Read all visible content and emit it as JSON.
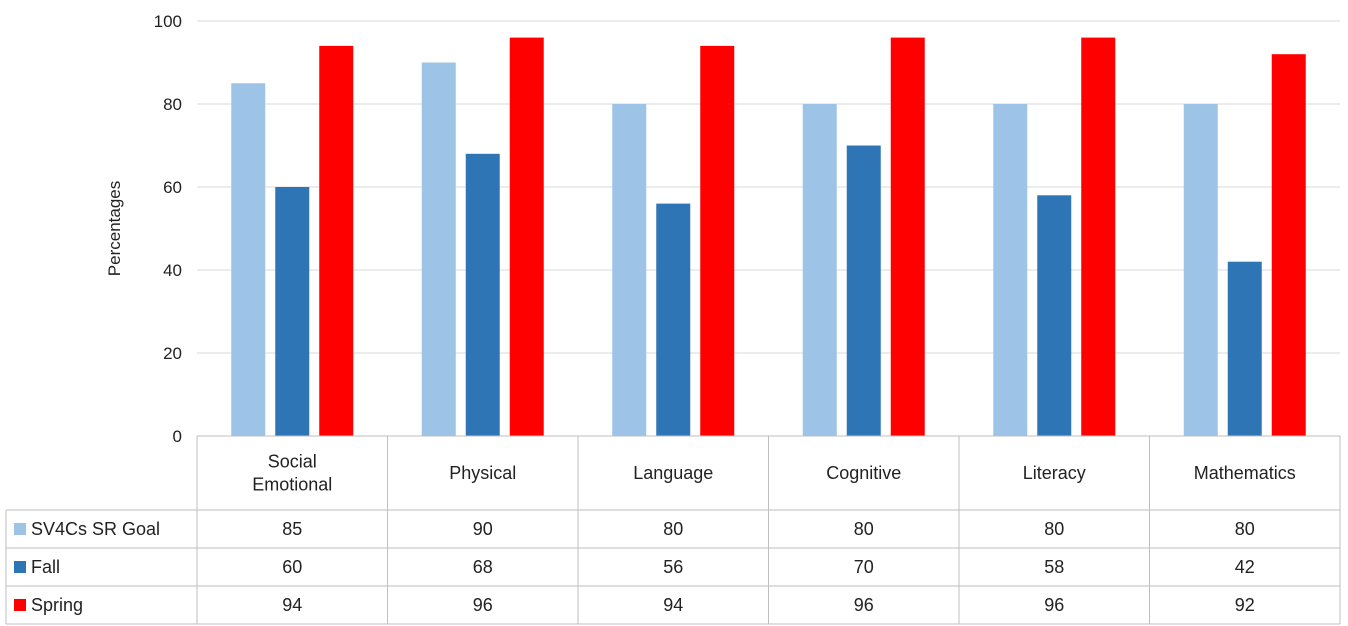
{
  "chart_data": {
    "type": "bar",
    "title": "",
    "xlabel": "",
    "ylabel": "Percentages",
    "ylim": [
      0,
      100
    ],
    "yticks": [
      0,
      20,
      40,
      60,
      80,
      100
    ],
    "grid": true,
    "legend_placement": "data-table-left",
    "categories": [
      [
        "Social",
        "Emotional"
      ],
      [
        "Physical"
      ],
      [
        "Language"
      ],
      [
        "Cognitive"
      ],
      [
        "Literacy"
      ],
      [
        "Mathematics"
      ]
    ],
    "series": [
      {
        "name": "SV4Cs SR Goal",
        "color": "#9DC3E6",
        "values": [
          85,
          90,
          80,
          80,
          80,
          80
        ]
      },
      {
        "name": "Fall",
        "color": "#2E75B6",
        "values": [
          60,
          68,
          56,
          70,
          58,
          42
        ]
      },
      {
        "name": "Spring",
        "color": "#FF0000",
        "values": [
          94,
          96,
          94,
          96,
          96,
          92
        ]
      }
    ]
  }
}
